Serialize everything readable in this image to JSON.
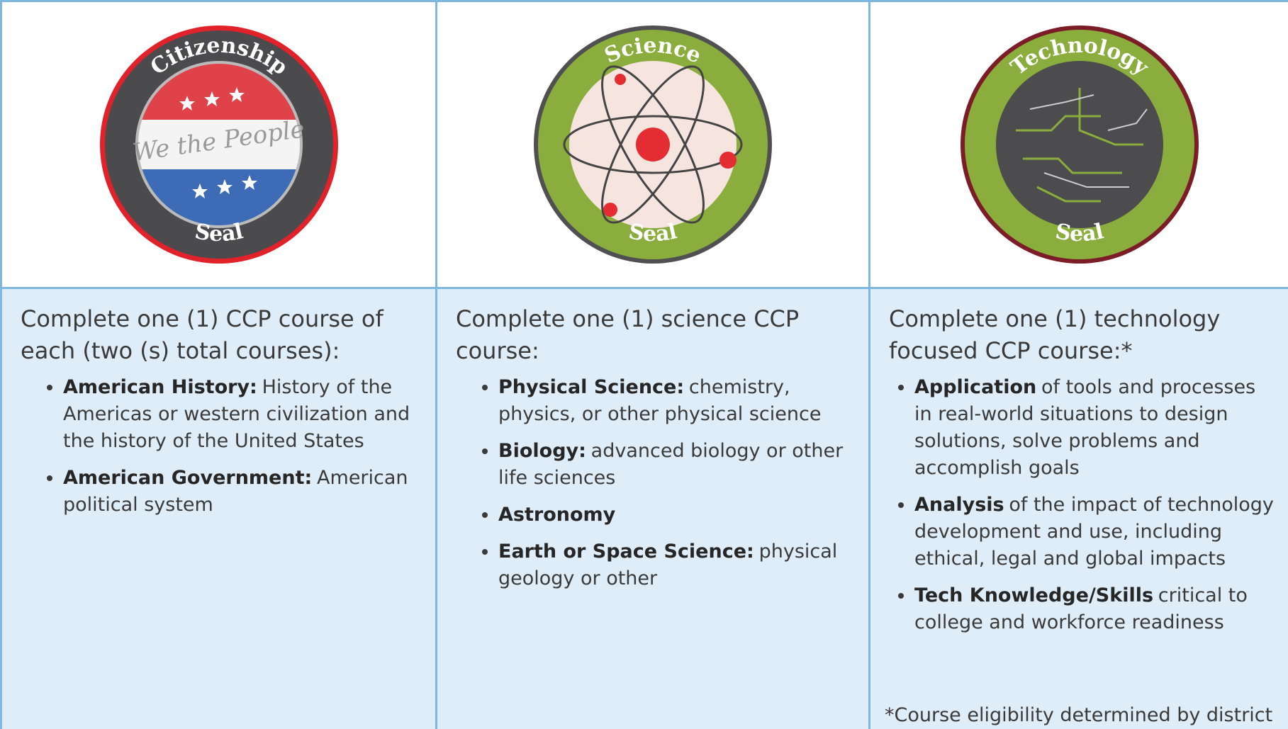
{
  "columns": [
    {
      "badge": {
        "top": "Citizenship",
        "bottom": "Seal",
        "center": "We the People"
      },
      "intro": "Complete one (1) CCP course of each (two (s) total courses):",
      "items": [
        {
          "bold": "American History:",
          "rest": "History of the Americas or western civilization and the history of the United States"
        },
        {
          "bold": "American Government:",
          "rest": "American political system"
        }
      ]
    },
    {
      "badge": {
        "top": "Science",
        "bottom": "Seal"
      },
      "intro": "Complete one (1) science CCP course:",
      "items": [
        {
          "bold": "Physical Science:",
          "rest": "chemistry, physics, or other physical science"
        },
        {
          "bold": "Biology:",
          "rest": "advanced biology or other life sciences"
        },
        {
          "bold": "Astronomy"
        },
        {
          "bold": "Earth or Space Science:",
          "rest": "physical geology or other"
        }
      ]
    },
    {
      "badge": {
        "top": "Technology",
        "bottom": "Seal"
      },
      "intro": "Complete one (1) technology focused CCP course:*",
      "items": [
        {
          "bold": "Application",
          "rest": "of tools and processes in real-world situations to design solutions, solve problems and accomplish goals"
        },
        {
          "bold": "Analysis",
          "rest": "of the impact of technology development and use, including ethical, legal and global impacts"
        },
        {
          "bold": "Tech Knowledge/Skills",
          "rest": "critical to college and workforce readiness"
        }
      ],
      "footnote": "*Course eligibility determined by district"
    }
  ]
}
